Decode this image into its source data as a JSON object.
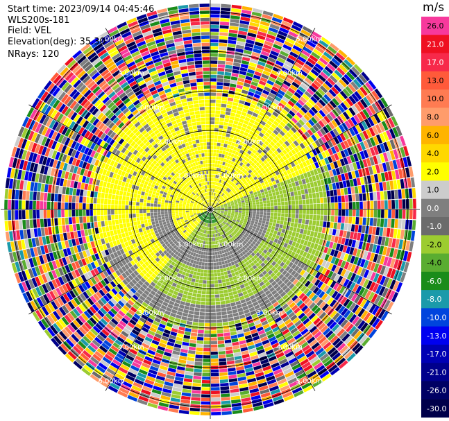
{
  "header": {
    "start_time": "Start time: 2023/09/14 04:45:46",
    "site": "WLS200s-181",
    "field": "Field: VEL",
    "elevation": "Elevation(deg): 35.30",
    "nrays": "NRays: 120"
  },
  "colorbar": {
    "unit": "m/s",
    "bins": [
      {
        "label": "26.0",
        "color": "#f7399c"
      },
      {
        "label": "21.0",
        "color": "#ef1021"
      },
      {
        "label": "17.0",
        "color": "#f7294a"
      },
      {
        "label": "13.0",
        "color": "#ff5a3a"
      },
      {
        "label": "10.0",
        "color": "#ff7b52"
      },
      {
        "label": "8.0",
        "color": "#ff9c6b"
      },
      {
        "label": "6.0",
        "color": "#ffb400"
      },
      {
        "label": "4.0",
        "color": "#ffd800"
      },
      {
        "label": "2.0",
        "color": "#ffff00"
      },
      {
        "label": "1.0",
        "color": "#cccccc"
      },
      {
        "label": "0.0",
        "color": "#7f7f7f"
      },
      {
        "label": "-1.0",
        "color": "#6b6b6b"
      },
      {
        "label": "-2.0",
        "color": "#9ccc30"
      },
      {
        "label": "-4.0",
        "color": "#5aad31"
      },
      {
        "label": "-6.0",
        "color": "#1a8c1a"
      },
      {
        "label": "-8.0",
        "color": "#1a9aaa"
      },
      {
        "label": "-10.0",
        "color": "#0044dd"
      },
      {
        "label": "-13.0",
        "color": "#0000f0"
      },
      {
        "label": "-17.0",
        "color": "#0000b4"
      },
      {
        "label": "-21.0",
        "color": "#00008c"
      },
      {
        "label": "-26.0",
        "color": "#000064"
      },
      {
        "label": "-30.0",
        "color": "#00004a"
      }
    ]
  },
  "chart_data": {
    "type": "heatmap",
    "projection": "polar-ppi",
    "field": "VEL",
    "units": "m/s",
    "nrays": 120,
    "range_rings_km": [
      1.0,
      2.0,
      3.0,
      4.0,
      5.0
    ],
    "ring_labels": [
      "1.00km",
      "2.00km",
      "3.00km",
      "4.00km",
      "5.00km"
    ],
    "radial_lines_deg": [
      0,
      30,
      60,
      90,
      120,
      150,
      180,
      210,
      240,
      270,
      300,
      330
    ],
    "value_range": [
      -30.0,
      26.0
    ],
    "max_range_km": 5.3,
    "inner_region_pattern": {
      "north_and_west_sector_value": 2.0,
      "east_and_south_sector_value": -2.0,
      "transition_ring_value": 0.0,
      "center_patch_value": -6.0
    },
    "outer_region": "noise (all bins of the colorbar)",
    "noise_start_km": 3.0
  }
}
